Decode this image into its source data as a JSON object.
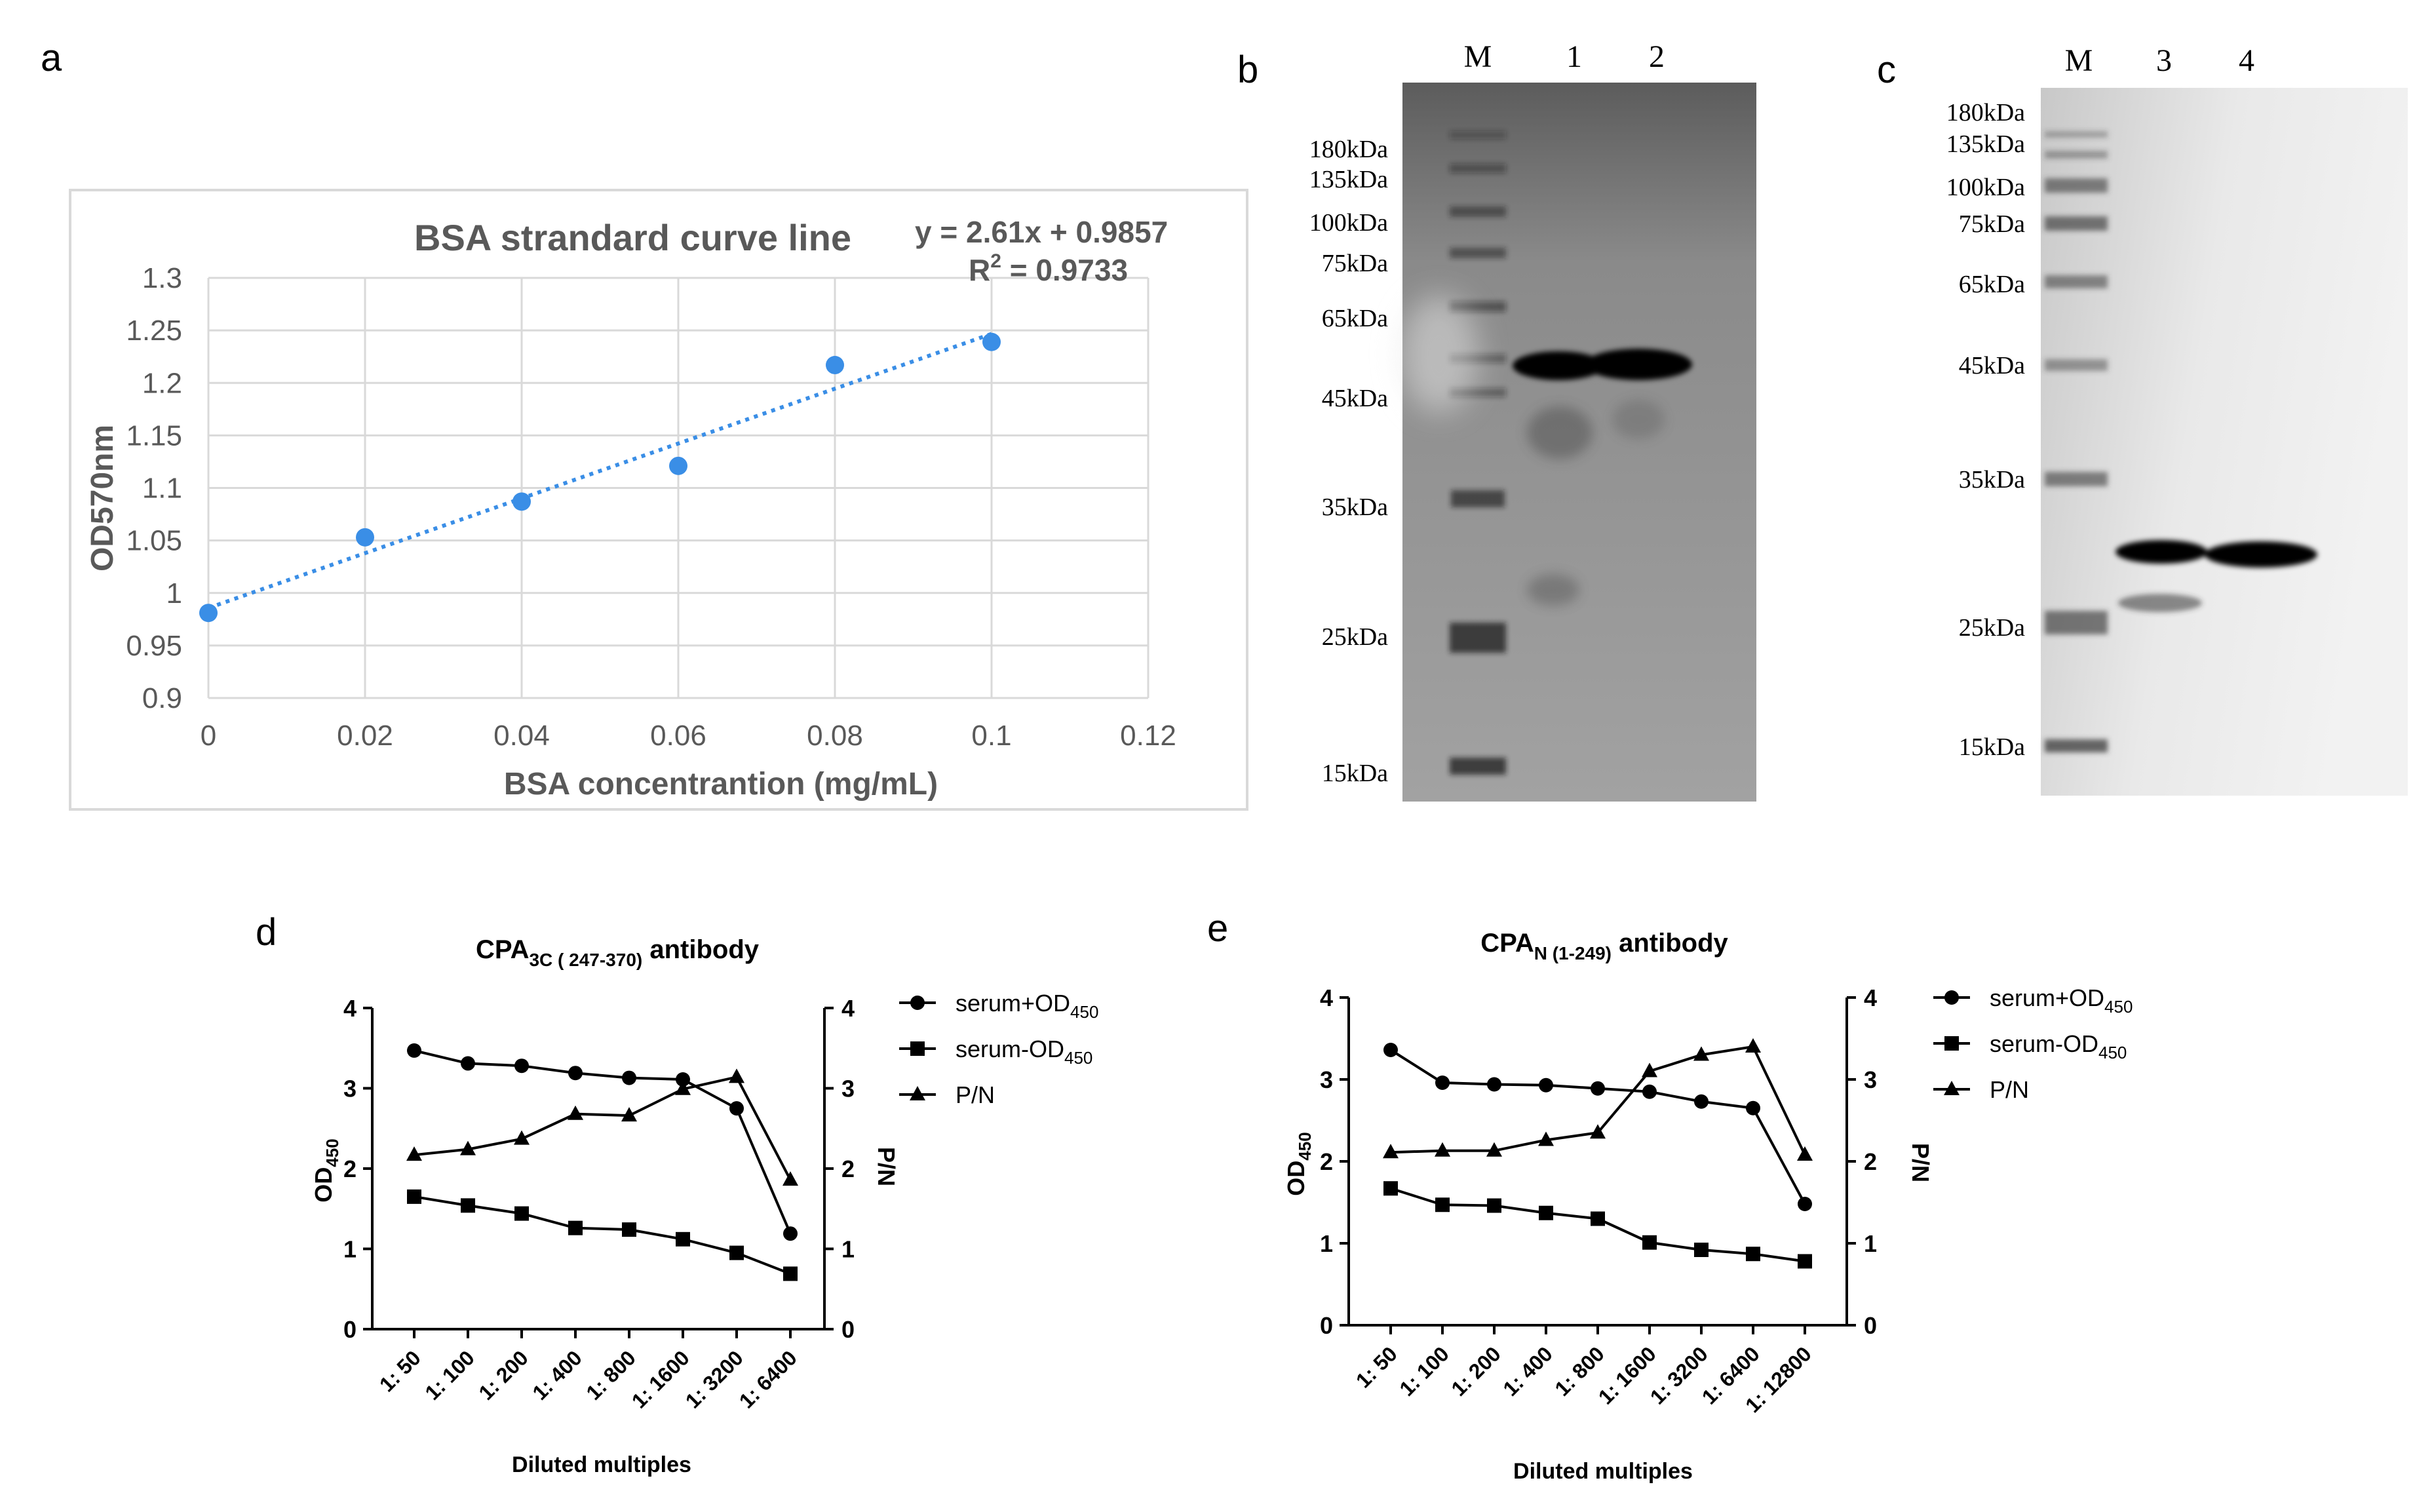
{
  "panel_letters": {
    "a": "a",
    "b": "b",
    "c": "c",
    "d": "d",
    "e": "e"
  },
  "colors": {
    "scatter": "#3A8EE6",
    "trend": "#3A8EE6",
    "grid": "#D9D9D9",
    "black": "#000000",
    "gray_text": "#595959"
  },
  "chart_data": [
    {
      "id": "a",
      "type": "scatter",
      "title": "BSA strandard curve line",
      "equation": "y = 2.61x + 0.9857",
      "r2_label": "R",
      "r2_sup": "2",
      "r2_value": " = 0.9733",
      "xlabel": "BSA concentrantion (mg/mL)",
      "ylabel": "OD570nm",
      "xlim": [
        0,
        0.12
      ],
      "ylim": [
        0.9,
        1.3
      ],
      "xticks": [
        "0",
        "0.02",
        "0.04",
        "0.06",
        "0.08",
        "0.1",
        "0.12"
      ],
      "yticks": [
        "0.9",
        "0.95",
        "1",
        "1.05",
        "1.1",
        "1.15",
        "1.2",
        "1.25",
        "1.3"
      ],
      "grid": true,
      "x": [
        0,
        0.02,
        0.04,
        0.06,
        0.08,
        0.1
      ],
      "y": [
        0.981,
        1.053,
        1.087,
        1.121,
        1.217,
        1.239
      ],
      "trendline": {
        "slope": 2.61,
        "intercept": 0.9857
      }
    },
    {
      "id": "d",
      "type": "line",
      "title_main": "CPA",
      "title_sub": "3C ( 247-370)",
      "title_rest": " antibody",
      "xlabel": "Diluted multiples",
      "ylabel_main": "OD",
      "ylabel_sub": "450",
      "y2label": "P/N",
      "categories": [
        "1: 50",
        "1: 100",
        "1: 200",
        "1: 400",
        "1: 800",
        "1: 1600",
        "1: 3200",
        "1: 6400"
      ],
      "ylim": [
        0,
        4
      ],
      "y2lim": [
        0,
        4
      ],
      "yticks": [
        "0",
        "1",
        "2",
        "3",
        "4"
      ],
      "legend_position": "right",
      "series": [
        {
          "name_main": "serum+OD",
          "name_sub": "450",
          "marker": "circle",
          "values": [
            3.47,
            3.31,
            3.28,
            3.19,
            3.13,
            3.11,
            2.75,
            1.19
          ]
        },
        {
          "name_main": "serum-OD",
          "name_sub": "450",
          "marker": "square",
          "values": [
            1.65,
            1.54,
            1.44,
            1.26,
            1.24,
            1.12,
            0.95,
            0.69
          ]
        },
        {
          "name_main": "P/N",
          "name_sub": "",
          "marker": "triangle",
          "values": [
            2.17,
            2.24,
            2.37,
            2.68,
            2.66,
            2.99,
            3.14,
            1.86
          ]
        }
      ]
    },
    {
      "id": "e",
      "type": "line",
      "title_main": "CPA",
      "title_sub": "N (1-249)",
      "title_rest": " antibody",
      "xlabel": "Diluted multiples",
      "ylabel_main": "OD",
      "ylabel_sub": "450",
      "y2label": "P/N",
      "categories": [
        "1: 50",
        "1: 100",
        "1: 200",
        "1: 400",
        "1: 800",
        "1: 1600",
        "1: 3200",
        "1: 6400",
        "1: 12800"
      ],
      "ylim": [
        0,
        4
      ],
      "y2lim": [
        0,
        4
      ],
      "yticks": [
        "0",
        "1",
        "2",
        "3",
        "4"
      ],
      "legend_position": "right",
      "series": [
        {
          "name_main": "serum+OD",
          "name_sub": "450",
          "marker": "circle",
          "values": [
            3.36,
            2.96,
            2.94,
            2.93,
            2.89,
            2.85,
            2.73,
            2.65,
            1.48
          ]
        },
        {
          "name_main": "serum-OD",
          "name_sub": "450",
          "marker": "square",
          "values": [
            1.67,
            1.47,
            1.46,
            1.37,
            1.3,
            1.01,
            0.92,
            0.87,
            0.78
          ]
        },
        {
          "name_main": "P/N",
          "name_sub": "",
          "marker": "triangle",
          "values": [
            2.11,
            2.13,
            2.13,
            2.26,
            2.35,
            3.1,
            3.3,
            3.4,
            2.08
          ]
        }
      ]
    }
  ],
  "blots": [
    {
      "id": "b",
      "lanes": [
        "M",
        "1",
        "2"
      ],
      "markers": [
        "180kDa",
        "135kDa",
        "100kDa",
        "75kDa",
        "65kDa",
        "45kDa",
        "35kDa",
        "25kDa",
        "15kDa"
      ]
    },
    {
      "id": "c",
      "lanes": [
        "M",
        "3",
        "4"
      ],
      "markers": [
        "180kDa",
        "135kDa",
        "100kDa",
        "75kDa",
        "65kDa",
        "45kDa",
        "35kDa",
        "25kDa",
        "15kDa"
      ]
    }
  ]
}
